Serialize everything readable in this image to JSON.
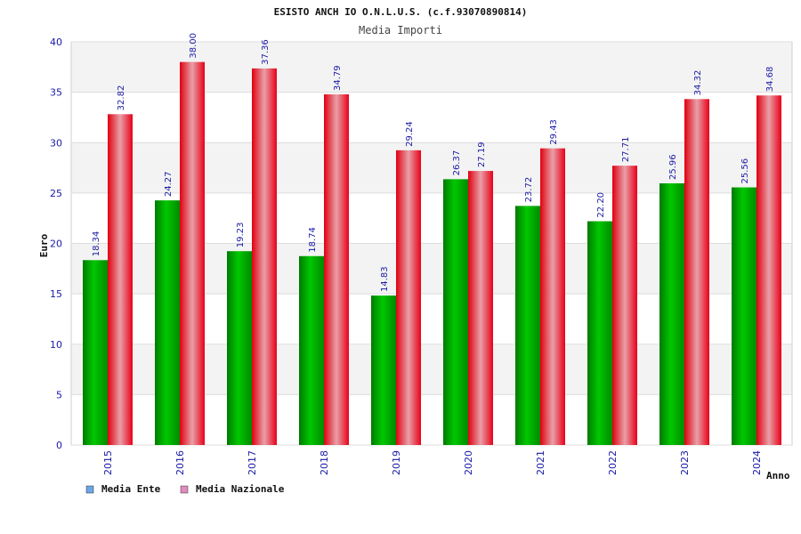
{
  "chart_data": {
    "type": "bar",
    "title": "ESISTO ANCH IO O.N.L.U.S. (c.f.93070890814)",
    "subtitle": "Media Importi",
    "ylabel": "Euro",
    "xlabel": "Anno",
    "categories": [
      "2015",
      "2016",
      "2017",
      "2018",
      "2019",
      "2020",
      "2021",
      "2022",
      "2023",
      "2024"
    ],
    "series": [
      {
        "name": "Media Ente",
        "values": [
          18.34,
          24.27,
          19.23,
          18.74,
          14.83,
          26.37,
          23.72,
          22.2,
          25.96,
          25.56
        ],
        "labels": [
          "18.34",
          "24.27",
          "19.23",
          "18.74",
          "14.83",
          "26.37",
          "23.72",
          "22.20",
          "25.96",
          "25.56"
        ],
        "color": "#00aa00",
        "legend_color": "#6aa6e8"
      },
      {
        "name": "Media Nazionale",
        "values": [
          32.82,
          38.0,
          37.36,
          34.79,
          29.24,
          27.19,
          29.43,
          27.71,
          34.32,
          34.68
        ],
        "labels": [
          "32.82",
          "38.00",
          "37.36",
          "34.79",
          "29.24",
          "27.19",
          "29.43",
          "27.71",
          "34.32",
          "34.68"
        ],
        "color": "#ee1122",
        "legend_color": "#e08cc0"
      }
    ],
    "ylim": [
      0,
      40
    ],
    "yticks": [
      "0",
      "5",
      "10",
      "15",
      "20",
      "25",
      "30",
      "35",
      "40"
    ],
    "grid": true,
    "legend_position": "bottom-left"
  }
}
